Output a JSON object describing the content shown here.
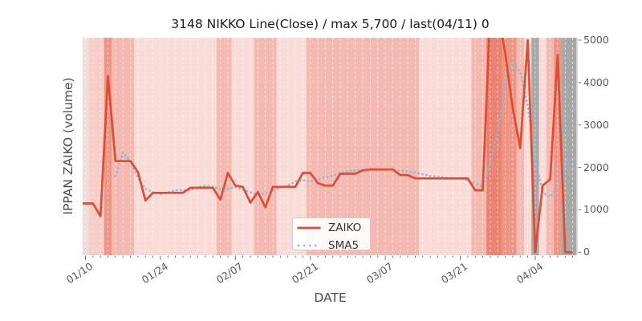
{
  "title": "3148 NIKKO Line(Close) / max 5,700 / last(04/11) 0",
  "axes": {
    "xlabel": "DATE",
    "ylabel": "IPPAN ZAIKO (volume)"
  },
  "legend": {
    "items": [
      {
        "label": "ZAIKO"
      },
      {
        "label": "SMA5"
      }
    ]
  },
  "chart_data": {
    "type": "line",
    "title": "3148 NIKKO Line(Close) / max 5,700 / last(04/11) 0",
    "xlabel": "DATE",
    "ylabel": "IPPAN ZAIKO (volume)",
    "n_points": 66,
    "x_tick_labels": [
      "01/10",
      "01/24",
      "02/07",
      "02/21",
      "03/07",
      "03/21",
      "04/04"
    ],
    "x_tick_indices": [
      0,
      10,
      20,
      30,
      40,
      50,
      60
    ],
    "yticks": [
      0,
      1000,
      2000,
      3000,
      4000,
      5000
    ],
    "ylim": [
      -75,
      5057
    ],
    "grid": "vertical-white-dashed-per-day",
    "legend_position": "lower center",
    "series": [
      {
        "name": "ZAIKO",
        "color": "#de4c33",
        "style": "solid",
        "values": [
          1150,
          1150,
          850,
          4150,
          2150,
          2150,
          2150,
          1890,
          1220,
          1400,
          1400,
          1400,
          1400,
          1400,
          1520,
          1520,
          1520,
          1520,
          1240,
          1870,
          1570,
          1540,
          1170,
          1420,
          1060,
          1540,
          1540,
          1540,
          1540,
          1870,
          1870,
          1630,
          1570,
          1570,
          1850,
          1850,
          1850,
          1930,
          1950,
          1950,
          1950,
          1950,
          1820,
          1820,
          1740,
          1740,
          1740,
          1740,
          1740,
          1740,
          1740,
          1740,
          1460,
          1460,
          5700,
          5700,
          4700,
          3400,
          2450,
          5000,
          0,
          1570,
          1720,
          4650,
          0,
          0
        ]
      },
      {
        "name": "SMA5",
        "color": "#92b7d6",
        "style": "dotted",
        "values": [
          null,
          null,
          null,
          null,
          1800,
          2350,
          2150,
          1750,
          1500,
          1410,
          1370,
          1410,
          1460,
          1460,
          1470,
          1530,
          1570,
          1540,
          1490,
          1500,
          1530,
          1480,
          1410,
          1350,
          1390,
          1440,
          1520,
          1570,
          1670,
          1700,
          1670,
          1720,
          1760,
          1800,
          1870,
          1900,
          1930,
          1945,
          1960,
          1960,
          1955,
          1945,
          1930,
          1900,
          1870,
          1840,
          1800,
          1780,
          1760,
          1740,
          1740,
          1690,
          1630,
          1540,
          2100,
          2850,
          3980,
          4480,
          4250,
          3450,
          2250,
          1400,
          1300,
          1520,
          2180,
          2000
        ]
      }
    ],
    "bands": [
      "L0",
      "LM",
      "LM",
      "D",
      "M",
      "M",
      "M",
      "L",
      "L",
      "L",
      "L",
      "L",
      "L",
      "L",
      "L",
      "L",
      "L",
      "L",
      "M",
      "M",
      "L",
      "L",
      "L",
      "M",
      "M",
      "M",
      "L",
      "L",
      "L",
      "L",
      "M",
      "M",
      "M",
      "M",
      "M",
      "M",
      "M",
      "M",
      "M",
      "M",
      "M",
      "M",
      "M",
      "M",
      "M",
      "L",
      "L",
      "L",
      "L",
      "L",
      "L",
      "L",
      "M",
      "M",
      "K",
      "K",
      "D",
      "D",
      "M",
      "L",
      "G",
      "L",
      "M",
      "D",
      "G",
      "G"
    ],
    "band_palette": {
      "L0": "#f2dcd9",
      "L": "#f9dcd8",
      "LM": "#f6cdc7",
      "M": "#f4bab1",
      "D": "#ee9686",
      "K": "#ea8373",
      "G": "#a8a8a8"
    },
    "right_margin_color": "#d9d9d9"
  }
}
